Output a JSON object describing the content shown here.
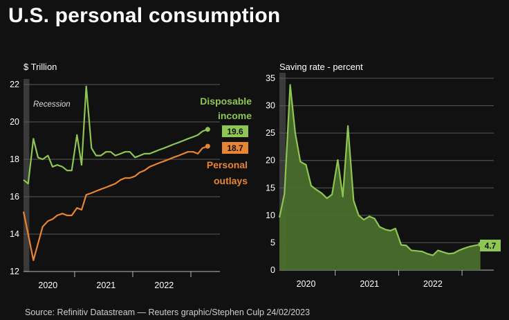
{
  "title": "U.S. personal consumption",
  "source": "Source: Refinitiv Datastream — Reuters graphic/Stephen Culp 24/02/2023",
  "colors": {
    "income": "#8ec653",
    "outlays": "#e88532",
    "saving_fill": "#4a6e2c",
    "recession": "#3a3a3a",
    "grid": "#5a5a5a"
  },
  "chart_data": [
    {
      "type": "line",
      "unit_label": "$ Trillion",
      "ylim": [
        12,
        22
      ],
      "yticks": [
        12,
        14,
        16,
        18,
        20,
        22
      ],
      "xlim": [
        2019.62,
        2023.0
      ],
      "xticks": [
        2020,
        2021,
        2022
      ],
      "year_dividers": [
        2020.5,
        2021.5,
        2022.5
      ],
      "recession": {
        "label": "Recession",
        "start": 2019.62,
        "end": 2019.72
      },
      "series": [
        {
          "name": "Disposable income",
          "label_lines": [
            "Disposable",
            "income"
          ],
          "last_value_label": "19.6",
          "x": [
            2019.62,
            2019.7,
            2019.79,
            2019.87,
            2019.95,
            2020.04,
            2020.12,
            2020.2,
            2020.29,
            2020.37,
            2020.45,
            2020.54,
            2020.62,
            2020.7,
            2020.79,
            2020.87,
            2020.95,
            2021.04,
            2021.12,
            2021.2,
            2021.29,
            2021.37,
            2021.45,
            2021.54,
            2021.62,
            2021.7,
            2021.79,
            2021.87,
            2021.95,
            2022.04,
            2022.12,
            2022.2,
            2022.29,
            2022.37,
            2022.45,
            2022.54,
            2022.62,
            2022.7,
            2022.79
          ],
          "values": [
            16.9,
            16.7,
            19.1,
            18.1,
            18.0,
            18.2,
            17.6,
            17.7,
            17.6,
            17.4,
            17.4,
            19.3,
            17.7,
            21.9,
            18.6,
            18.2,
            18.2,
            18.4,
            18.4,
            18.2,
            18.3,
            18.4,
            18.4,
            18.1,
            18.2,
            18.3,
            18.3,
            18.4,
            18.5,
            18.6,
            18.7,
            18.8,
            18.9,
            19.0,
            19.1,
            19.2,
            19.3,
            19.5,
            19.6
          ]
        },
        {
          "name": "Personal outlays",
          "label_lines": [
            "Personal",
            "outlays"
          ],
          "last_value_label": "18.7",
          "x": [
            2019.62,
            2019.7,
            2019.79,
            2019.87,
            2019.95,
            2020.04,
            2020.12,
            2020.2,
            2020.29,
            2020.37,
            2020.45,
            2020.54,
            2020.62,
            2020.7,
            2020.79,
            2020.87,
            2020.95,
            2021.04,
            2021.12,
            2021.2,
            2021.29,
            2021.37,
            2021.45,
            2021.54,
            2021.62,
            2021.7,
            2021.79,
            2021.87,
            2021.95,
            2022.04,
            2022.12,
            2022.2,
            2022.29,
            2022.37,
            2022.45,
            2022.54,
            2022.62,
            2022.7,
            2022.79
          ],
          "values": [
            15.2,
            14.0,
            12.6,
            13.5,
            14.4,
            14.7,
            14.8,
            15.0,
            15.1,
            15.0,
            15.0,
            15.4,
            15.3,
            16.1,
            16.2,
            16.3,
            16.4,
            16.5,
            16.6,
            16.7,
            16.9,
            17.0,
            17.0,
            17.1,
            17.3,
            17.4,
            17.6,
            17.7,
            17.8,
            17.9,
            18.0,
            18.1,
            18.2,
            18.3,
            18.4,
            18.4,
            18.3,
            18.6,
            18.7
          ]
        }
      ]
    },
    {
      "type": "area",
      "unit_label": "Saving rate - percent",
      "ylim": [
        0,
        35
      ],
      "yticks": [
        0,
        5,
        10,
        15,
        20,
        25,
        30,
        35
      ],
      "xlim": [
        2019.62,
        2023.0
      ],
      "xticks": [
        2020,
        2021,
        2022
      ],
      "year_dividers": [
        2020.5,
        2021.5,
        2022.5
      ],
      "recession": {
        "start": 2019.62,
        "end": 2019.72
      },
      "series": [
        {
          "name": "Saving rate",
          "last_value_label": "4.7",
          "x": [
            2019.62,
            2019.7,
            2019.79,
            2019.87,
            2019.95,
            2020.04,
            2020.12,
            2020.2,
            2020.29,
            2020.37,
            2020.45,
            2020.54,
            2020.62,
            2020.7,
            2020.79,
            2020.87,
            2020.95,
            2021.04,
            2021.12,
            2021.2,
            2021.29,
            2021.37,
            2021.45,
            2021.54,
            2021.62,
            2021.7,
            2021.79,
            2021.87,
            2021.95,
            2022.04,
            2022.12,
            2022.2,
            2022.29,
            2022.37,
            2022.45,
            2022.54,
            2022.62,
            2022.7,
            2022.79
          ],
          "values": [
            9.6,
            13.9,
            33.8,
            25.0,
            19.8,
            19.2,
            15.4,
            14.7,
            14.0,
            13.1,
            13.8,
            20.1,
            13.4,
            26.3,
            12.7,
            10.0,
            9.2,
            9.8,
            9.4,
            7.9,
            7.4,
            7.2,
            7.6,
            4.6,
            4.5,
            3.6,
            3.5,
            3.4,
            3.0,
            2.7,
            3.6,
            3.3,
            3.0,
            3.1,
            3.6,
            4.0,
            4.3,
            4.5,
            4.7
          ]
        }
      ]
    }
  ]
}
